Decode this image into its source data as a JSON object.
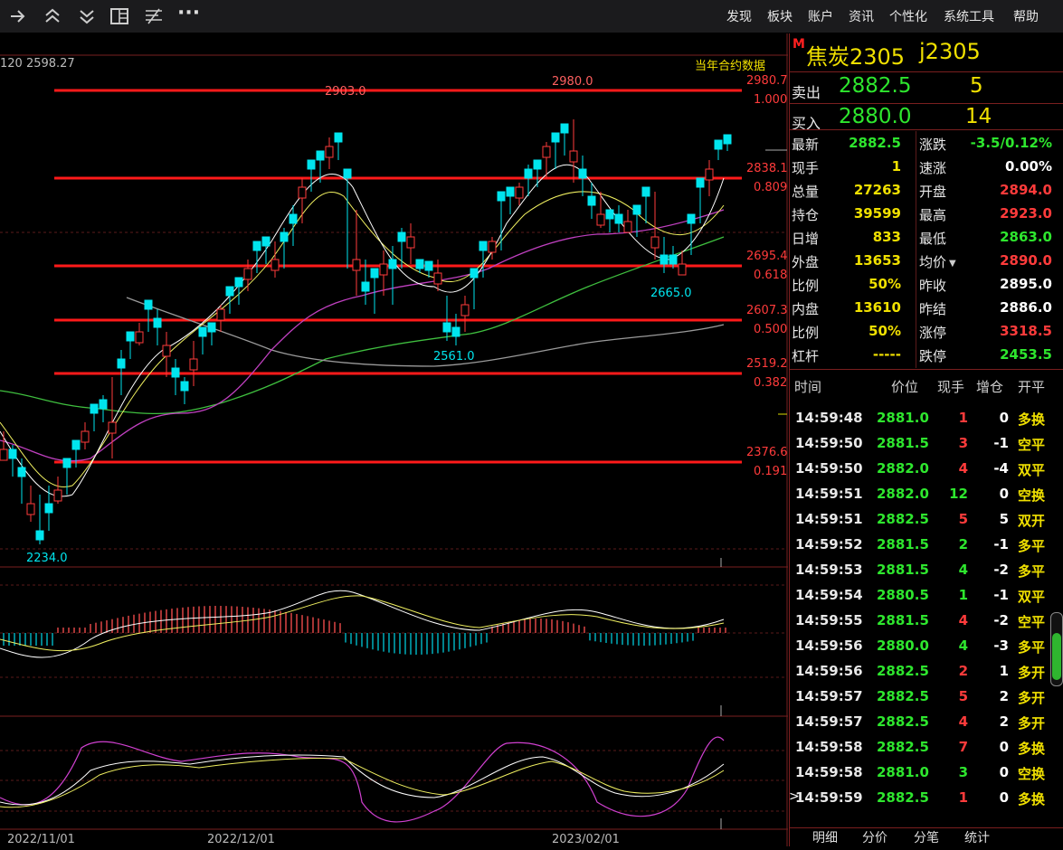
{
  "toolbar": {
    "icons": [
      "arrow-right-icon",
      "double-up-icon",
      "double-down-icon",
      "layout-icon",
      "indicator-icon",
      "more-icon"
    ],
    "more_label": "···",
    "menu": [
      "发现",
      "板块",
      "账户",
      "资讯",
      "个性化",
      "系统工具",
      "帮助"
    ]
  },
  "chart": {
    "ma_readout": "120 2598.27",
    "contract_data_label": "当年合约数据",
    "fib_levels": [
      {
        "price": "2980.7",
        "ratio": "1.000"
      },
      {
        "price": "2838.1",
        "ratio": "0.809"
      },
      {
        "price": "2695.4",
        "ratio": "0.618"
      },
      {
        "price": "2607.3",
        "ratio": "0.500"
      },
      {
        "price": "2519.2",
        "ratio": "0.382"
      },
      {
        "price": "2376.6",
        "ratio": "0.191"
      }
    ],
    "annotations": {
      "high1": "2903.0",
      "high2": "2980.0",
      "low_main": "2561.0",
      "low2": "2665.0",
      "low_min": "2234.0"
    },
    "dates": [
      "2022/11/01",
      "2022/12/01",
      "2023/02/01"
    ]
  },
  "quote": {
    "marker": "M",
    "name": "焦炭2305",
    "code": "j2305",
    "sell_label": "卖出",
    "sell_price": "2882.5",
    "sell_vol": "5",
    "buy_label": "买入",
    "buy_price": "2880.0",
    "buy_vol": "14",
    "left_fields": [
      {
        "label": "最新",
        "value": "2882.5",
        "color": "green"
      },
      {
        "label": "现手",
        "value": "1",
        "color": "yellow"
      },
      {
        "label": "总量",
        "value": "27263",
        "color": "yellow"
      },
      {
        "label": "持仓",
        "value": "39599",
        "color": "yellow"
      },
      {
        "label": "日增",
        "value": "833",
        "color": "yellow"
      },
      {
        "label": "外盘",
        "value": "13653",
        "color": "yellow"
      },
      {
        "label": "比例",
        "value": "50%",
        "color": "yellow"
      },
      {
        "label": "内盘",
        "value": "13610",
        "color": "yellow"
      },
      {
        "label": "比例",
        "value": "50%",
        "color": "yellow"
      },
      {
        "label": "杠杆",
        "value": "-----",
        "color": "yellow"
      }
    ],
    "right_fields": [
      {
        "label": "涨跌",
        "value": "-3.5/0.12%",
        "color": "green"
      },
      {
        "label": "速涨",
        "value": "0.00%",
        "color": "white"
      },
      {
        "label": "开盘",
        "value": "2894.0",
        "color": "red"
      },
      {
        "label": "最高",
        "value": "2923.0",
        "color": "red"
      },
      {
        "label": "最低",
        "value": "2863.0",
        "color": "green"
      },
      {
        "label": "均价",
        "value": "2890.0",
        "color": "red"
      },
      {
        "label": "昨收",
        "value": "2895.0",
        "color": "white"
      },
      {
        "label": "昨结",
        "value": "2886.0",
        "color": "white"
      },
      {
        "label": "涨停",
        "value": "3318.5",
        "color": "red"
      },
      {
        "label": "跌停",
        "value": "2453.5",
        "color": "green"
      }
    ]
  },
  "ticks": {
    "headers": [
      "时间",
      "价位",
      "现手",
      "增仓",
      "开平"
    ],
    "rows": [
      {
        "time": "14:59:48",
        "price": "2881.0",
        "hand": "1",
        "hand_color": "red",
        "oi": "0",
        "type": "多换",
        "type_color": "yellow"
      },
      {
        "time": "14:59:50",
        "price": "2881.5",
        "hand": "3",
        "hand_color": "red",
        "oi": "-1",
        "type": "空平",
        "type_color": "yellow"
      },
      {
        "time": "14:59:50",
        "price": "2882.0",
        "hand": "4",
        "hand_color": "red",
        "oi": "-4",
        "type": "双平",
        "type_color": "yellow"
      },
      {
        "time": "14:59:51",
        "price": "2882.0",
        "hand": "12",
        "hand_color": "green",
        "oi": "0",
        "type": "空换",
        "type_color": "yellow"
      },
      {
        "time": "14:59:51",
        "price": "2882.5",
        "hand": "5",
        "hand_color": "red",
        "oi": "5",
        "type": "双开",
        "type_color": "yellow"
      },
      {
        "time": "14:59:52",
        "price": "2881.5",
        "hand": "2",
        "hand_color": "green",
        "oi": "-1",
        "type": "多平",
        "type_color": "yellow"
      },
      {
        "time": "14:59:53",
        "price": "2881.5",
        "hand": "4",
        "hand_color": "green",
        "oi": "-2",
        "type": "多平",
        "type_color": "yellow"
      },
      {
        "time": "14:59:54",
        "price": "2880.5",
        "hand": "1",
        "hand_color": "green",
        "oi": "-1",
        "type": "双平",
        "type_color": "yellow"
      },
      {
        "time": "14:59:55",
        "price": "2881.5",
        "hand": "4",
        "hand_color": "red",
        "oi": "-2",
        "type": "空平",
        "type_color": "yellow"
      },
      {
        "time": "14:59:56",
        "price": "2880.0",
        "hand": "4",
        "hand_color": "green",
        "oi": "-3",
        "type": "多平",
        "type_color": "yellow"
      },
      {
        "time": "14:59:56",
        "price": "2882.5",
        "hand": "2",
        "hand_color": "red",
        "oi": "1",
        "type": "多开",
        "type_color": "yellow"
      },
      {
        "time": "14:59:57",
        "price": "2882.5",
        "hand": "5",
        "hand_color": "red",
        "oi": "2",
        "type": "多开",
        "type_color": "yellow"
      },
      {
        "time": "14:59:57",
        "price": "2882.5",
        "hand": "4",
        "hand_color": "red",
        "oi": "2",
        "type": "多开",
        "type_color": "yellow"
      },
      {
        "time": "14:59:58",
        "price": "2882.5",
        "hand": "7",
        "hand_color": "red",
        "oi": "0",
        "type": "多换",
        "type_color": "yellow"
      },
      {
        "time": "14:59:58",
        "price": "2881.0",
        "hand": "3",
        "hand_color": "green",
        "oi": "0",
        "type": "空换",
        "type_color": "yellow"
      },
      {
        "time": "14:59:59",
        "price": "2882.5",
        "hand": "1",
        "hand_color": "red",
        "oi": "0",
        "type": "多换",
        "type_color": "yellow"
      }
    ],
    "cursor_mark": ">"
  },
  "bottom_tabs": [
    "明细",
    "分价",
    "分笔",
    "统计"
  ]
}
